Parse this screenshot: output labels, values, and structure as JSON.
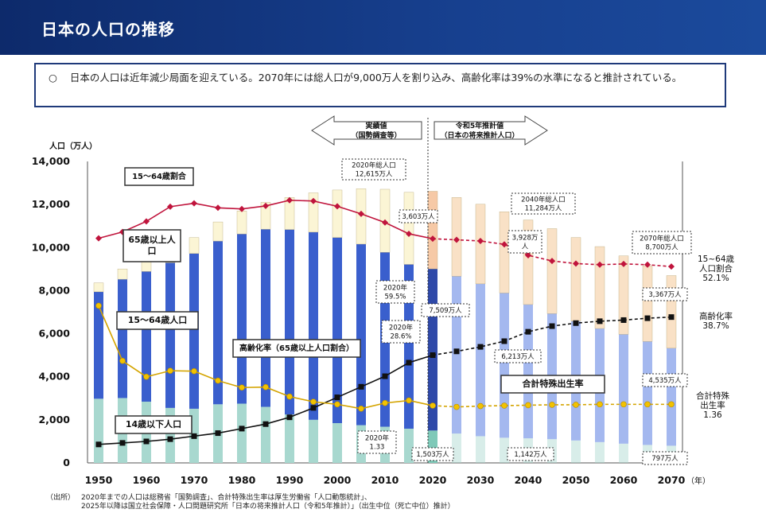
{
  "header": {
    "title": "日本の人口の推移"
  },
  "summary": {
    "bullet": "○",
    "text": "日本の人口は近年減少局面を迎えている。2070年には総人口が9,000万人を割り込み、高齢化率は39%の水準になると推計されている。"
  },
  "chart_data": {
    "type": "bar",
    "ylabel": "人口（万人）",
    "xlabel": "（年）",
    "ylim": [
      0,
      14000
    ],
    "y_ticks": [
      "0",
      "2,000",
      "4,000",
      "6,000",
      "8,000",
      "10,000",
      "12,000",
      "14,000"
    ],
    "x_tick_labels": [
      "1950",
      "1960",
      "1970",
      "1980",
      "1990",
      "2000",
      "2010",
      "2020",
      "2030",
      "2040",
      "2050",
      "2060",
      "2070"
    ],
    "years": [
      1950,
      1955,
      1960,
      1965,
      1970,
      1975,
      1980,
      1985,
      1990,
      1995,
      2000,
      2005,
      2010,
      2015,
      2020,
      2025,
      2030,
      2035,
      2040,
      2045,
      2050,
      2055,
      2060,
      2065,
      2070
    ],
    "series": [
      {
        "name": "14歳以下人口",
        "color": "#a8d8cf",
        "values": [
          2979,
          3012,
          2843,
          2553,
          2515,
          2722,
          2751,
          2603,
          2249,
          2001,
          1847,
          1752,
          1680,
          1589,
          1503,
          1363,
          1240,
          1169,
          1142,
          1103,
          1041,
          966,
          893,
          834,
          797
        ]
      },
      {
        "name": "15～64歳人口",
        "color": "#3a5fcd",
        "values": [
          4966,
          5517,
          6047,
          6744,
          7212,
          7581,
          7883,
          8251,
          8590,
          8716,
          8622,
          8409,
          8103,
          7629,
          7509,
          7310,
          7076,
          6722,
          6213,
          5832,
          5540,
          5276,
          5078,
          4809,
          4535
        ]
      },
      {
        "name": "65歳以上人口",
        "color": "#fbf5d5",
        "values": [
          416,
          479,
          540,
          624,
          739,
          887,
          1065,
          1247,
          1489,
          1826,
          2204,
          2576,
          2925,
          3347,
          3603,
          3653,
          3696,
          3773,
          3928,
          3945,
          3888,
          3804,
          3644,
          3513,
          3367
        ]
      },
      {
        "name": "高齢化率",
        "unit": "%",
        "color": "#111111",
        "values": [
          4.9,
          5.3,
          5.7,
          6.3,
          7.1,
          7.9,
          9.1,
          10.3,
          12.1,
          14.6,
          17.4,
          20.2,
          23.0,
          26.6,
          28.6,
          29.6,
          30.8,
          32.3,
          34.8,
          36.3,
          37.1,
          37.6,
          37.9,
          38.4,
          38.7
        ]
      },
      {
        "name": "15～64歳割合",
        "unit": "%",
        "color": "#c0143c",
        "values": [
          59.6,
          61.3,
          64.1,
          68.0,
          68.9,
          67.7,
          67.4,
          68.2,
          69.7,
          69.5,
          68.1,
          66.1,
          63.8,
          60.8,
          59.5,
          59.2,
          58.9,
          58.0,
          55.1,
          53.6,
          52.9,
          52.6,
          52.8,
          52.6,
          52.1
        ]
      },
      {
        "name": "合計特殊出生率",
        "color": "#d4a400",
        "values": [
          3.65,
          2.37,
          2.0,
          2.14,
          2.13,
          1.91,
          1.75,
          1.76,
          1.54,
          1.42,
          1.36,
          1.26,
          1.39,
          1.45,
          1.33,
          1.3,
          1.32,
          1.33,
          1.34,
          1.35,
          1.35,
          1.36,
          1.36,
          1.36,
          1.36
        ]
      }
    ],
    "right_axis_hint": {
      "rate_max_percent": 80,
      "tfr_max": 7
    },
    "arrows": {
      "actual": "実績値\n（国勢調査等）",
      "projection": "令和5年推計値\n（日本の将来推計人口）"
    },
    "legend_labels": {
      "aging_ratio": "15～64歳割合",
      "elderly": "65歳以上人\n口",
      "working": "15～64歳人口",
      "aging_rate": "高齢化率（65歳以上人口割合）",
      "children": "14歳以下人口",
      "tfr": "合計特殊出生率"
    },
    "annotations": {
      "total2020": "2020年総人口\n12,615万人",
      "elderly2020": "3,603万人",
      "working_rate2020": "2020年\n59.5%",
      "aging2020": "2020年\n28.6%",
      "working2020": "7,509万人",
      "tfr2020": "2020年\n1.33",
      "children2020": "1,503万人",
      "total2040": "2040年総人口\n11,284万人",
      "elderly2040": "3,928万\n人",
      "working2040": "6,213万人",
      "children2040": "1,142万人",
      "total2070": "2070年総人口\n8,700万人",
      "elderly2070": "3,367万人",
      "working2070": "4,535万人",
      "children2070": "797万人",
      "right_working": "15~64歳\n人口割合\n52.1%",
      "right_aging": "高齢化率\n38.7%",
      "right_tfr": "合計特殊\n出生率\n1.36"
    }
  },
  "footnote": {
    "label": "（出所）",
    "line1": "2020年までの人口は総務省「国勢調査」、合計特殊出生率は厚生労働省「人口動態統計」、",
    "line2": "2025年以降は国立社会保障・人口問題研究所「日本の将来推計人口（令和5年推計）」（出生中位（死亡中位）推計）"
  }
}
